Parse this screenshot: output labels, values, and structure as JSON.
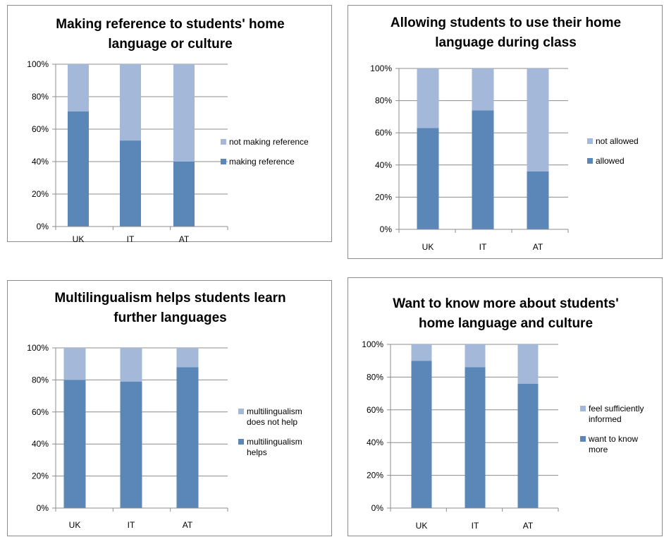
{
  "chart_data": [
    {
      "type": "bar",
      "stacked": true,
      "title_lines": [
        "Making reference to students' home",
        "language or culture"
      ],
      "categories": [
        "UK",
        "IT",
        "AT"
      ],
      "yticks": [
        "0%",
        "20%",
        "40%",
        "60%",
        "80%",
        "100%"
      ],
      "ylim": [
        0,
        100
      ],
      "series": [
        {
          "name": "making reference",
          "name_lines": [
            "making reference"
          ],
          "color": "#5b87b8",
          "values": [
            71,
            53,
            40
          ]
        },
        {
          "name": "not making reference",
          "name_lines": [
            "not making reference"
          ],
          "color": "#a4b8d9",
          "values": [
            29,
            47,
            60
          ]
        }
      ],
      "legend": "right"
    },
    {
      "type": "bar",
      "stacked": true,
      "title_lines": [
        "Allowing students to use their home",
        "language during class"
      ],
      "categories": [
        "UK",
        "IT",
        "AT"
      ],
      "yticks": [
        "0%",
        "20%",
        "40%",
        "60%",
        "80%",
        "100%"
      ],
      "ylim": [
        0,
        100
      ],
      "series": [
        {
          "name": "allowed",
          "name_lines": [
            "allowed"
          ],
          "color": "#5b87b8",
          "values": [
            63,
            74,
            36
          ]
        },
        {
          "name": "not allowed",
          "name_lines": [
            "not allowed"
          ],
          "color": "#a4b8d9",
          "values": [
            37,
            26,
            64
          ]
        }
      ],
      "legend": "right"
    },
    {
      "type": "bar",
      "stacked": true,
      "title_lines": [
        "Multilingualism helps students learn",
        "further languages"
      ],
      "categories": [
        "UK",
        "IT",
        "AT"
      ],
      "yticks": [
        "0%",
        "20%",
        "40%",
        "60%",
        "80%",
        "100%"
      ],
      "ylim": [
        0,
        100
      ],
      "series": [
        {
          "name": "multilingualism helps",
          "name_lines": [
            "multilingualism",
            "helps"
          ],
          "color": "#5b87b8",
          "values": [
            80,
            79,
            88
          ]
        },
        {
          "name": "multilingualism does not help",
          "name_lines": [
            "multilingualism",
            "does not help"
          ],
          "color": "#a4b8d9",
          "values": [
            20,
            21,
            12
          ]
        }
      ],
      "legend": "right"
    },
    {
      "type": "bar",
      "stacked": true,
      "title_lines": [
        "Want to know more about students'",
        "home language and culture"
      ],
      "categories": [
        "UK",
        "IT",
        "AT"
      ],
      "yticks": [
        "0%",
        "20%",
        "40%",
        "60%",
        "80%",
        "100%"
      ],
      "ylim": [
        0,
        100
      ],
      "series": [
        {
          "name": "want to know more",
          "name_lines": [
            "want to know",
            "more"
          ],
          "color": "#5b87b8",
          "values": [
            90,
            86,
            76
          ]
        },
        {
          "name": "feel sufficiently informed",
          "name_lines": [
            "feel sufficiently",
            "informed"
          ],
          "color": "#a4b8d9",
          "values": [
            10,
            14,
            24
          ]
        }
      ],
      "legend": "right"
    }
  ]
}
